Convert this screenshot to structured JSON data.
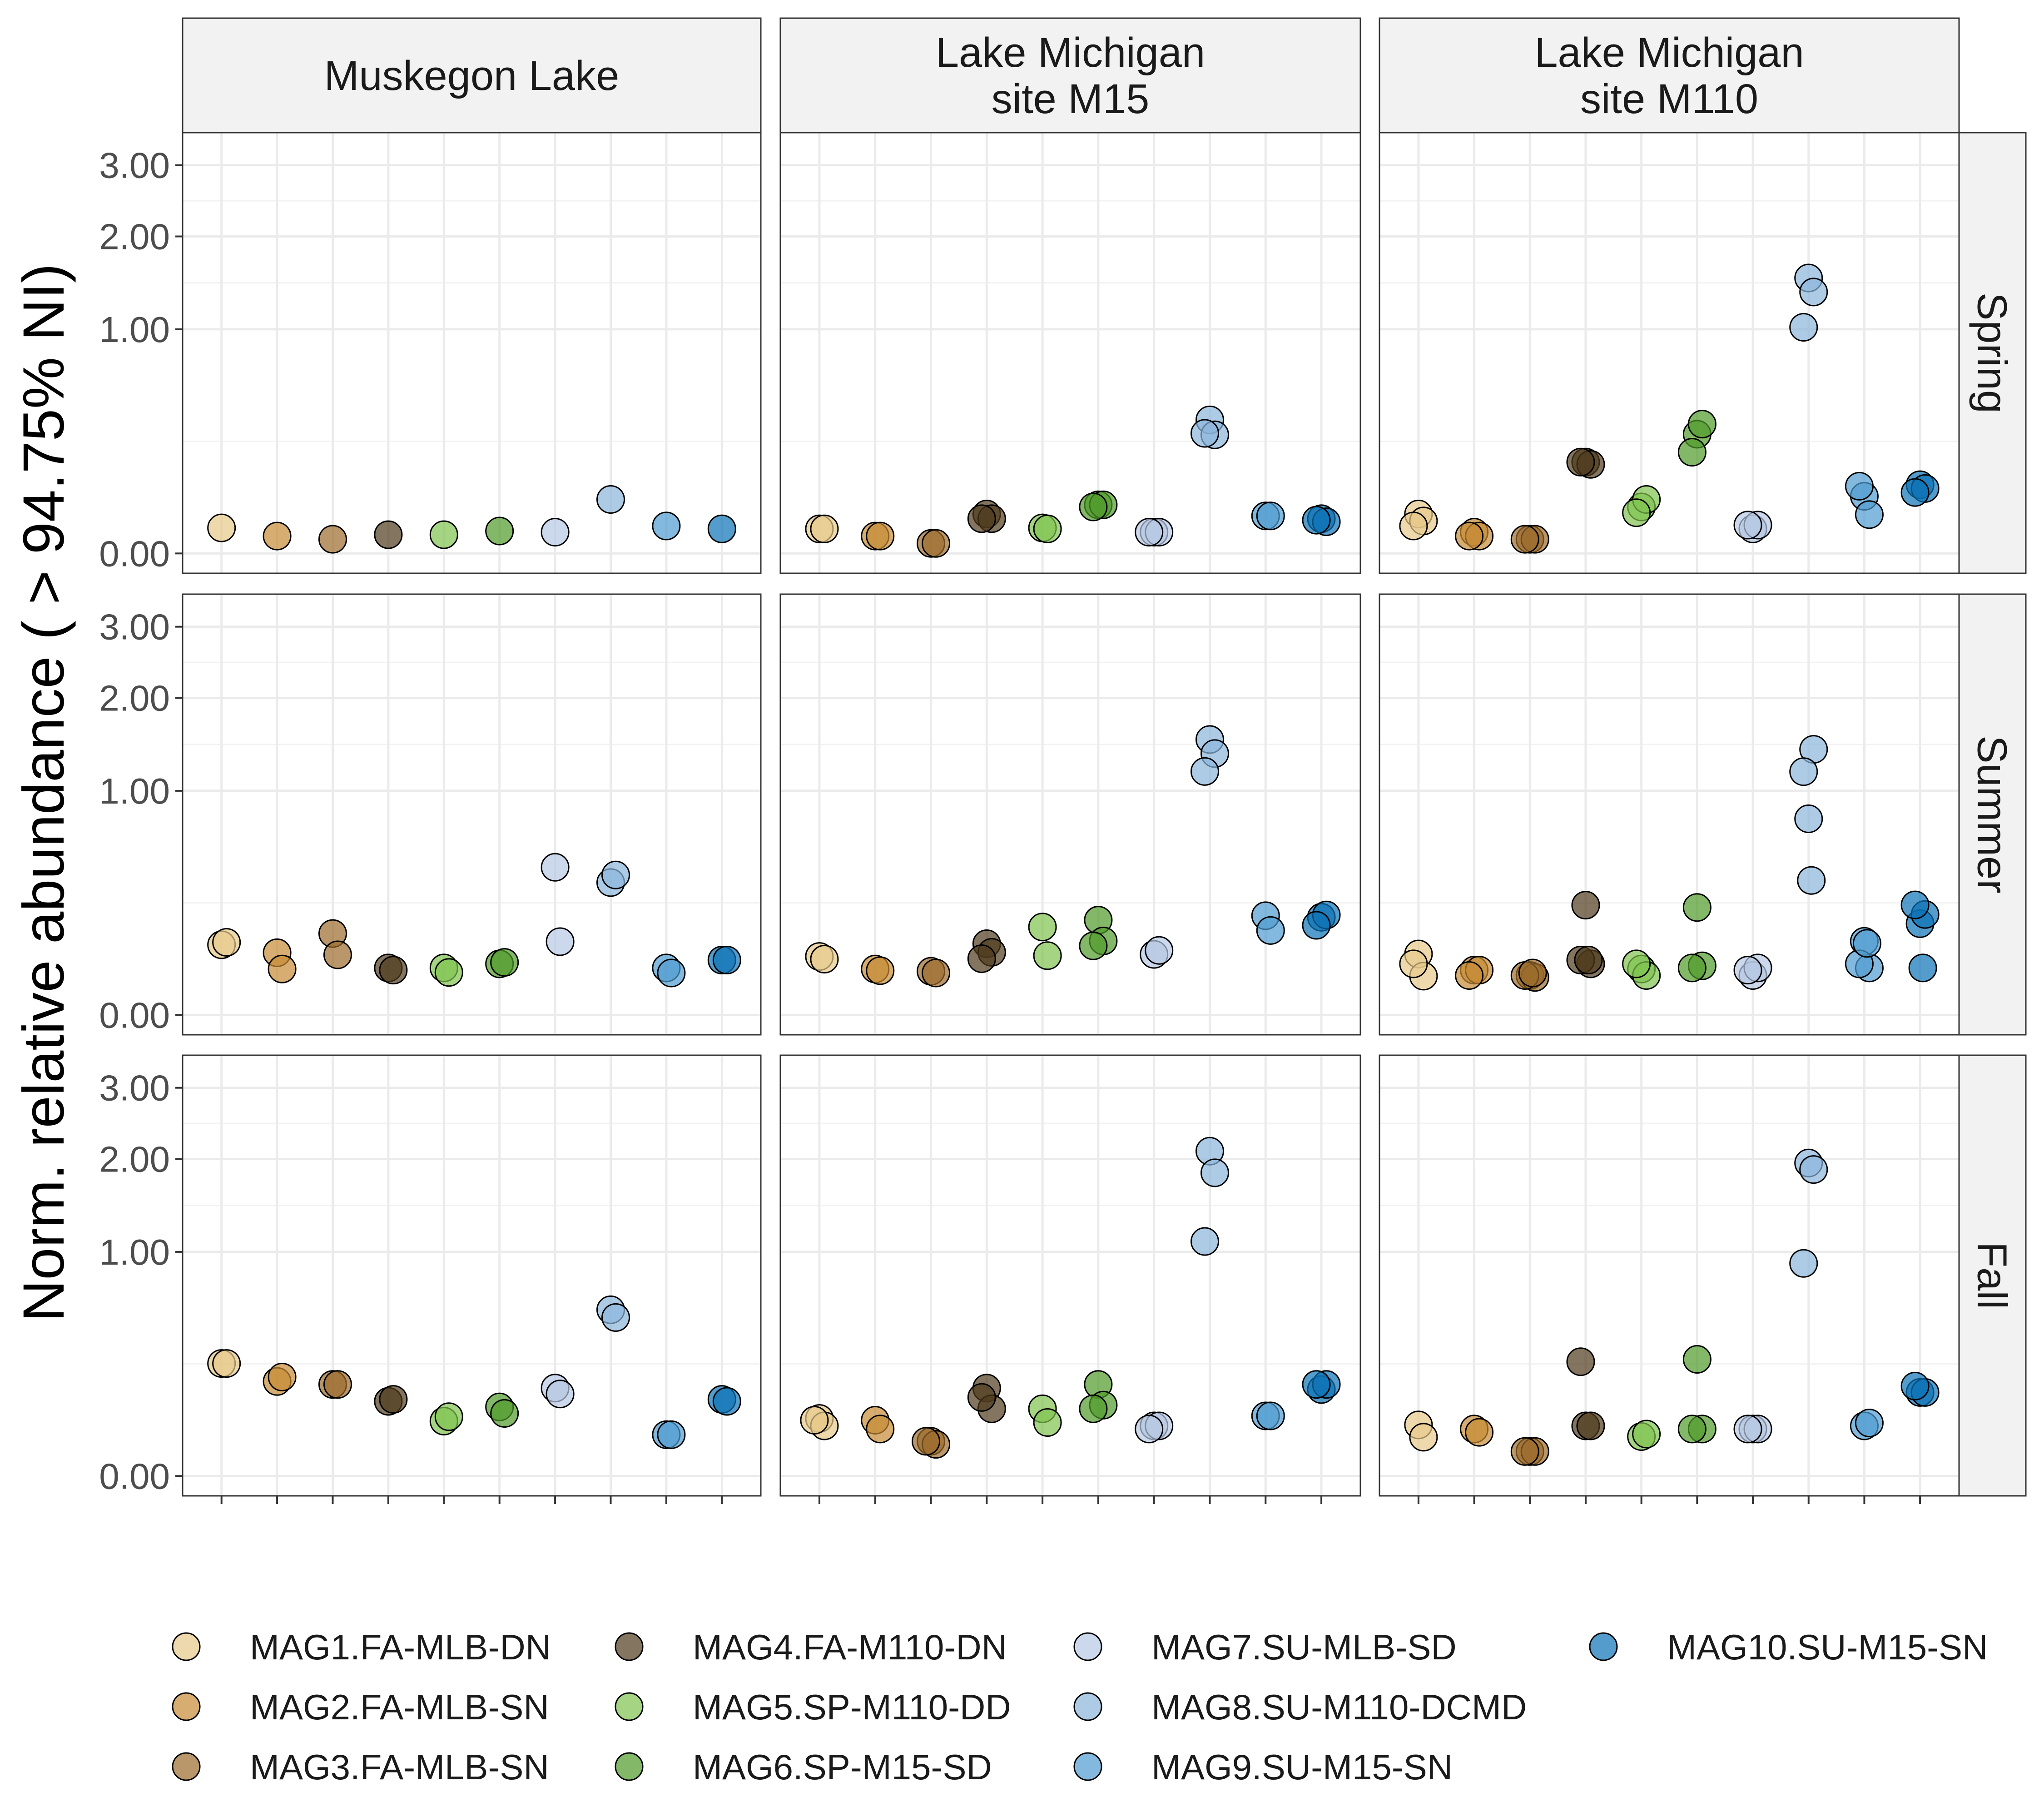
{
  "chart_data": {
    "type": "scatter",
    "ylabel": "Norm. relative abundance ( > 94.75% NI)",
    "xlabel": "",
    "y_scale": "sqrt",
    "yticks": [
      0,
      1,
      2,
      3
    ],
    "ytick_labels": [
      "0.00",
      "1.00",
      "2.00",
      "3.00"
    ],
    "ylim": [
      0,
      3.2
    ],
    "grid": true,
    "legend_position": "bottom",
    "columns": [
      "Muskegon Lake",
      "Lake Michigan\nsite M15",
      "Lake Michigan\nsite M110"
    ],
    "rows": [
      "Spring",
      "Summer",
      "Fall"
    ],
    "series": [
      {
        "name": "MAG1.FA-MLB-DN",
        "color": "#E7C98A"
      },
      {
        "name": "MAG2.FA-MLB-SN",
        "color": "#C68A35"
      },
      {
        "name": "MAG3.FA-MLB-SN",
        "color": "#9B6B2C"
      },
      {
        "name": "MAG4.FA-M110-DN",
        "color": "#4F3A1C"
      },
      {
        "name": "MAG5.SP-M110-DD",
        "color": "#7FC34E"
      },
      {
        "name": "MAG6.SP-M15-SD",
        "color": "#4E9A2A"
      },
      {
        "name": "MAG7.SU-MLB-SD",
        "color": "#B7C8E2"
      },
      {
        "name": "MAG8.SU-M110-DCMD",
        "color": "#8CB5DB"
      },
      {
        "name": "MAG9.SU-M15-SN",
        "color": "#4E9BD0"
      },
      {
        "name": "MAG10.SU-M15-SN",
        "color": "#0B72B5"
      }
    ],
    "panels": [
      {
        "column": 0,
        "row": 0,
        "points": [
          [
            0,
            0.013
          ],
          [
            1,
            0.006
          ],
          [
            2,
            0.004
          ],
          [
            3,
            0.007
          ],
          [
            4,
            0.007
          ],
          [
            5,
            0.01
          ],
          [
            6,
            0.009
          ],
          [
            7,
            0.058
          ],
          [
            8,
            0.015
          ],
          [
            9,
            0.012
          ]
        ]
      },
      {
        "column": 1,
        "row": 0,
        "points": [
          [
            0,
            0.012
          ],
          [
            0,
            0.012
          ],
          [
            1,
            0.006
          ],
          [
            1,
            0.006
          ],
          [
            2,
            0.002
          ],
          [
            2,
            0.002
          ],
          [
            3,
            0.031
          ],
          [
            3,
            0.024
          ],
          [
            3,
            0.024
          ],
          [
            4,
            0.013
          ],
          [
            4,
            0.012
          ],
          [
            5,
            0.047
          ],
          [
            5,
            0.047
          ],
          [
            5,
            0.043
          ],
          [
            6,
            0.009
          ],
          [
            6,
            0.009
          ],
          [
            6,
            0.009
          ],
          [
            7,
            0.355
          ],
          [
            7,
            0.28
          ],
          [
            7,
            0.287
          ],
          [
            8,
            0.028
          ],
          [
            8,
            0.028
          ],
          [
            9,
            0.024
          ],
          [
            9,
            0.02
          ],
          [
            9,
            0.022
          ]
        ]
      },
      {
        "column": 2,
        "row": 0,
        "points": [
          [
            0,
            0.031
          ],
          [
            0,
            0.021
          ],
          [
            0,
            0.015
          ],
          [
            1,
            0.009
          ],
          [
            1,
            0.006
          ],
          [
            1,
            0.006
          ],
          [
            2,
            0.004
          ],
          [
            2,
            0.004
          ],
          [
            2,
            0.004
          ],
          [
            3,
            0.166
          ],
          [
            3,
            0.158
          ],
          [
            3,
            0.166
          ],
          [
            4,
            0.043
          ],
          [
            4,
            0.058
          ],
          [
            4,
            0.033
          ],
          [
            5,
            0.283
          ],
          [
            5,
            0.333
          ],
          [
            5,
            0.204
          ],
          [
            6,
            0.012
          ],
          [
            6,
            0.016
          ],
          [
            6,
            0.016
          ],
          [
            7,
            1.51
          ],
          [
            7,
            1.36
          ],
          [
            7,
            1.018
          ],
          [
            8,
            0.065
          ],
          [
            8,
            0.03
          ],
          [
            8,
            0.09
          ],
          [
            9,
            0.094
          ],
          [
            9,
            0.084
          ],
          [
            9,
            0.074
          ]
        ]
      },
      {
        "column": 0,
        "row": 1,
        "points": [
          [
            0,
            0.098
          ],
          [
            0,
            0.105
          ],
          [
            1,
            0.077
          ],
          [
            1,
            0.042
          ],
          [
            2,
            0.132
          ],
          [
            2,
            0.072
          ],
          [
            3,
            0.044
          ],
          [
            3,
            0.04
          ],
          [
            4,
            0.044
          ],
          [
            4,
            0.036
          ],
          [
            5,
            0.052
          ],
          [
            5,
            0.055
          ],
          [
            6,
            0.434
          ],
          [
            6,
            0.107
          ],
          [
            7,
            0.349
          ],
          [
            7,
            0.39
          ],
          [
            8,
            0.044
          ],
          [
            8,
            0.035
          ],
          [
            9,
            0.06
          ],
          [
            9,
            0.06
          ]
        ]
      },
      {
        "column": 1,
        "row": 1,
        "points": [
          [
            0,
            0.068
          ],
          [
            0,
            0.062
          ],
          [
            1,
            0.042
          ],
          [
            1,
            0.039
          ],
          [
            2,
            0.038
          ],
          [
            2,
            0.035
          ],
          [
            3,
            0.101
          ],
          [
            3,
            0.078
          ],
          [
            3,
            0.063
          ],
          [
            4,
            0.154
          ],
          [
            4,
            0.07
          ],
          [
            5,
            0.179
          ],
          [
            5,
            0.109
          ],
          [
            5,
            0.095
          ],
          [
            6,
            0.073
          ],
          [
            6,
            0.083
          ],
          [
            7,
            1.51
          ],
          [
            7,
            1.36
          ],
          [
            7,
            1.18
          ],
          [
            8,
            0.196
          ],
          [
            8,
            0.142
          ],
          [
            9,
            0.19
          ],
          [
            9,
            0.199
          ],
          [
            9,
            0.16
          ]
        ]
      },
      {
        "column": 2,
        "row": 1,
        "points": [
          [
            0,
            0.074
          ],
          [
            0,
            0.03
          ],
          [
            0,
            0.052
          ],
          [
            1,
            0.04
          ],
          [
            1,
            0.04
          ],
          [
            1,
            0.031
          ],
          [
            2,
            0.031
          ],
          [
            2,
            0.028
          ],
          [
            2,
            0.031
          ],
          [
            2,
            0.035
          ],
          [
            3,
            0.24
          ],
          [
            3,
            0.052
          ],
          [
            3,
            0.06
          ],
          [
            3,
            0.06
          ],
          [
            4,
            0.042
          ],
          [
            4,
            0.031
          ],
          [
            4,
            0.052
          ],
          [
            5,
            0.23
          ],
          [
            5,
            0.048
          ],
          [
            5,
            0.044
          ],
          [
            6,
            0.031
          ],
          [
            6,
            0.044
          ],
          [
            6,
            0.04
          ],
          [
            7,
            0.766
          ],
          [
            7,
            1.404
          ],
          [
            7,
            1.178
          ],
          [
            7,
            0.36
          ],
          [
            8,
            0.108
          ],
          [
            8,
            0.044
          ],
          [
            8,
            0.052
          ],
          [
            8,
            0.102
          ],
          [
            9,
            0.166
          ],
          [
            9,
            0.201
          ],
          [
            9,
            0.241
          ],
          [
            9,
            0.044
          ]
        ]
      },
      {
        "column": 0,
        "row": 2,
        "points": [
          [
            0,
            0.252
          ],
          [
            0,
            0.252
          ],
          [
            1,
            0.178
          ],
          [
            1,
            0.195
          ],
          [
            2,
            0.167
          ],
          [
            2,
            0.167
          ],
          [
            3,
            0.111
          ],
          [
            3,
            0.117
          ],
          [
            4,
            0.06
          ],
          [
            4,
            0.07
          ],
          [
            5,
            0.095
          ],
          [
            5,
            0.078
          ],
          [
            6,
            0.154
          ],
          [
            6,
            0.134
          ],
          [
            7,
            0.55
          ],
          [
            7,
            0.5
          ],
          [
            8,
            0.034
          ],
          [
            8,
            0.034
          ],
          [
            9,
            0.117
          ],
          [
            9,
            0.111
          ]
        ]
      },
      {
        "column": 1,
        "row": 2,
        "points": [
          [
            0,
            0.066
          ],
          [
            0,
            0.05
          ],
          [
            0,
            0.062
          ],
          [
            1,
            0.062
          ],
          [
            1,
            0.044
          ],
          [
            2,
            0.024
          ],
          [
            2,
            0.02
          ],
          [
            2,
            0.024
          ],
          [
            3,
            0.154
          ],
          [
            3,
            0.09
          ],
          [
            3,
            0.123
          ],
          [
            4,
            0.09
          ],
          [
            4,
            0.057
          ],
          [
            5,
            0.167
          ],
          [
            5,
            0.1
          ],
          [
            5,
            0.09
          ],
          [
            6,
            0.05
          ],
          [
            6,
            0.05
          ],
          [
            6,
            0.044
          ],
          [
            7,
            2.1
          ],
          [
            7,
            1.83
          ],
          [
            7,
            1.095
          ],
          [
            8,
            0.072
          ],
          [
            8,
            0.072
          ],
          [
            9,
            0.149
          ],
          [
            9,
            0.167
          ],
          [
            9,
            0.167
          ]
        ]
      },
      {
        "column": 2,
        "row": 2,
        "points": [
          [
            0,
            0.052
          ],
          [
            0,
            0.03
          ],
          [
            1,
            0.044
          ],
          [
            1,
            0.038
          ],
          [
            2,
            0.012
          ],
          [
            2,
            0.012
          ],
          [
            2,
            0.012
          ],
          [
            3,
            0.05
          ],
          [
            3,
            0.05
          ],
          [
            3,
            0.26
          ],
          [
            4,
            0.031
          ],
          [
            4,
            0.035
          ],
          [
            5,
            0.271
          ],
          [
            5,
            0.044
          ],
          [
            5,
            0.044
          ],
          [
            6,
            0.044
          ],
          [
            6,
            0.044
          ],
          [
            6,
            0.044
          ],
          [
            7,
            1.95
          ],
          [
            7,
            1.87
          ],
          [
            7,
            0.9
          ],
          [
            8,
            0.05
          ],
          [
            8,
            0.056
          ],
          [
            9,
            0.139
          ],
          [
            9,
            0.139
          ],
          [
            9,
            0.161
          ]
        ]
      }
    ]
  }
}
